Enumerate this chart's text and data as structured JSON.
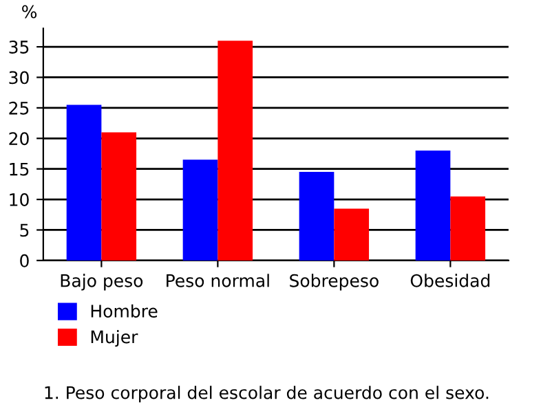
{
  "chart_data": {
    "type": "bar",
    "ylabel": "%",
    "categories": [
      "Bajo peso",
      "Peso normal",
      "Sobrepeso",
      "Obesidad"
    ],
    "series": [
      {
        "name": "Hombre",
        "color": "#0000ff",
        "values": [
          25.5,
          16.5,
          14.5,
          18
        ]
      },
      {
        "name": "Mujer",
        "color": "#ff0000",
        "values": [
          21,
          36,
          8.5,
          10.5
        ]
      }
    ],
    "ylim": [
      0,
      38
    ],
    "yticks": [
      0,
      5,
      10,
      15,
      20,
      25,
      30,
      35
    ],
    "grid": "y",
    "legend": "bottom left",
    "annotations": [
      "1. Peso corporal del escolar de acuerdo con el sexo."
    ]
  }
}
